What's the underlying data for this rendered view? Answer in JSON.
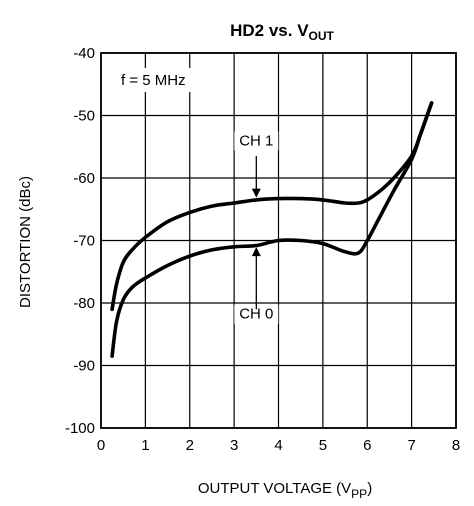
{
  "chart_data": {
    "type": "line",
    "title_main": "HD2 vs. V",
    "title_sub": "OUT",
    "xlabel_main": "OUTPUT VOLTAGE (V",
    "xlabel_sub": "PP",
    "xlabel_close": ")",
    "ylabel": "DISTORTION (dBc)",
    "xlim": [
      0,
      8
    ],
    "ylim": [
      -100,
      -40
    ],
    "xticks": [
      "0",
      "1",
      "2",
      "3",
      "4",
      "5",
      "6",
      "7",
      "8"
    ],
    "yticks": [
      "-40",
      "-50",
      "-60",
      "-70",
      "-80",
      "-90",
      "-100"
    ],
    "grid": true,
    "annotation": "f = 5 MHz",
    "series": [
      {
        "name": "CH 1",
        "x": [
          0.25,
          0.35,
          0.5,
          0.7,
          1.0,
          1.5,
          2.0,
          2.5,
          3.0,
          3.5,
          4.0,
          4.5,
          5.0,
          5.5,
          5.8,
          6.0,
          6.3,
          6.6,
          7.0,
          7.2,
          7.45
        ],
        "y": [
          -81,
          -77,
          -73.5,
          -71.5,
          -69.5,
          -67,
          -65.5,
          -64.5,
          -64,
          -63.5,
          -63.3,
          -63.3,
          -63.5,
          -64,
          -64,
          -63.5,
          -62,
          -60,
          -56.5,
          -53,
          -48
        ]
      },
      {
        "name": "CH 0",
        "x": [
          0.25,
          0.35,
          0.5,
          0.7,
          1.0,
          1.5,
          2.0,
          2.5,
          3.0,
          3.5,
          4.0,
          4.5,
          5.0,
          5.5,
          5.8,
          6.0,
          6.3,
          6.6,
          7.0,
          7.2,
          7.45
        ],
        "y": [
          -88.5,
          -83,
          -79.5,
          -77.5,
          -76,
          -74,
          -72.5,
          -71.5,
          -71,
          -70.8,
          -70,
          -70,
          -70.5,
          -71.8,
          -72,
          -70,
          -66,
          -62,
          -57,
          -53,
          -48
        ]
      }
    ],
    "series_labels": [
      {
        "text": "CH 1",
        "label_x": 3.5,
        "label_y": -54.8,
        "arrow_x": 3.5,
        "arrow_from_y": -56.5,
        "arrow_to_y": -63.3
      },
      {
        "text": "CH 0",
        "label_x": 3.5,
        "label_y": -82.5,
        "arrow_x": 3.5,
        "arrow_from_y": -81,
        "arrow_to_y": -70.9
      }
    ]
  }
}
